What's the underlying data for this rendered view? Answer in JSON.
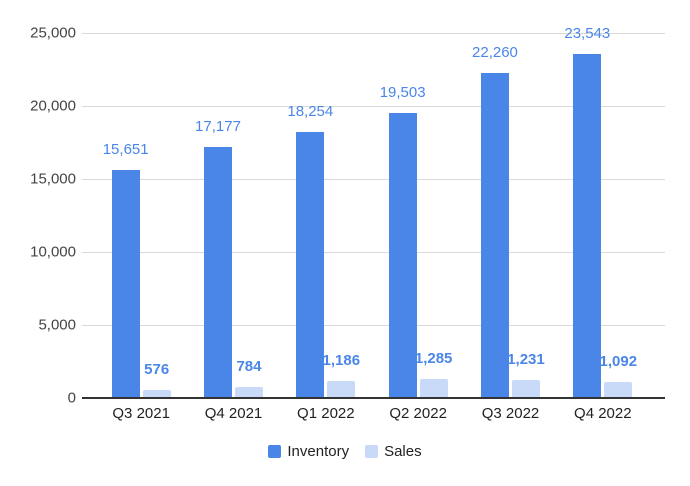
{
  "chart_data": {
    "type": "bar",
    "title": "",
    "xlabel": "",
    "ylabel": "",
    "background_color": "#ffffff",
    "grid": true,
    "legend_position": "bottom",
    "categories": [
      "Q3 2021",
      "Q4 2021",
      "Q1 2022",
      "Q2 2022",
      "Q3 2022",
      "Q4 2022"
    ],
    "series": [
      {
        "name": "Inventory",
        "color": "#4a86e8",
        "values": [
          15651,
          17177,
          18254,
          19503,
          22260,
          23543
        ],
        "labels": [
          "15,651",
          "17,177",
          "18,254",
          "19,503",
          "22,260",
          "23,543"
        ],
        "label_bold": false
      },
      {
        "name": "Sales",
        "color": "#c9daf8",
        "values": [
          576,
          784,
          1186,
          1285,
          1231,
          1092
        ],
        "labels": [
          "576",
          "784",
          "1,186",
          "1,285",
          "1,231",
          "1,092"
        ],
        "label_bold": true
      }
    ],
    "ylim": [
      0,
      25000
    ],
    "y_ticks": [
      {
        "value": 0,
        "label": "0"
      },
      {
        "value": 5000,
        "label": "5,000"
      },
      {
        "value": 10000,
        "label": "10,000"
      },
      {
        "value": 15000,
        "label": "15,000"
      },
      {
        "value": 20000,
        "label": "20,000"
      },
      {
        "value": 25000,
        "label": "25,000"
      }
    ],
    "colors": {
      "data_label": "#4a86e8",
      "gridline": "#d9d9d9",
      "axis_line": "#333333",
      "y_tick_text": "#444444",
      "x_tick_text": "#222222",
      "legend_text": "#222222"
    }
  }
}
